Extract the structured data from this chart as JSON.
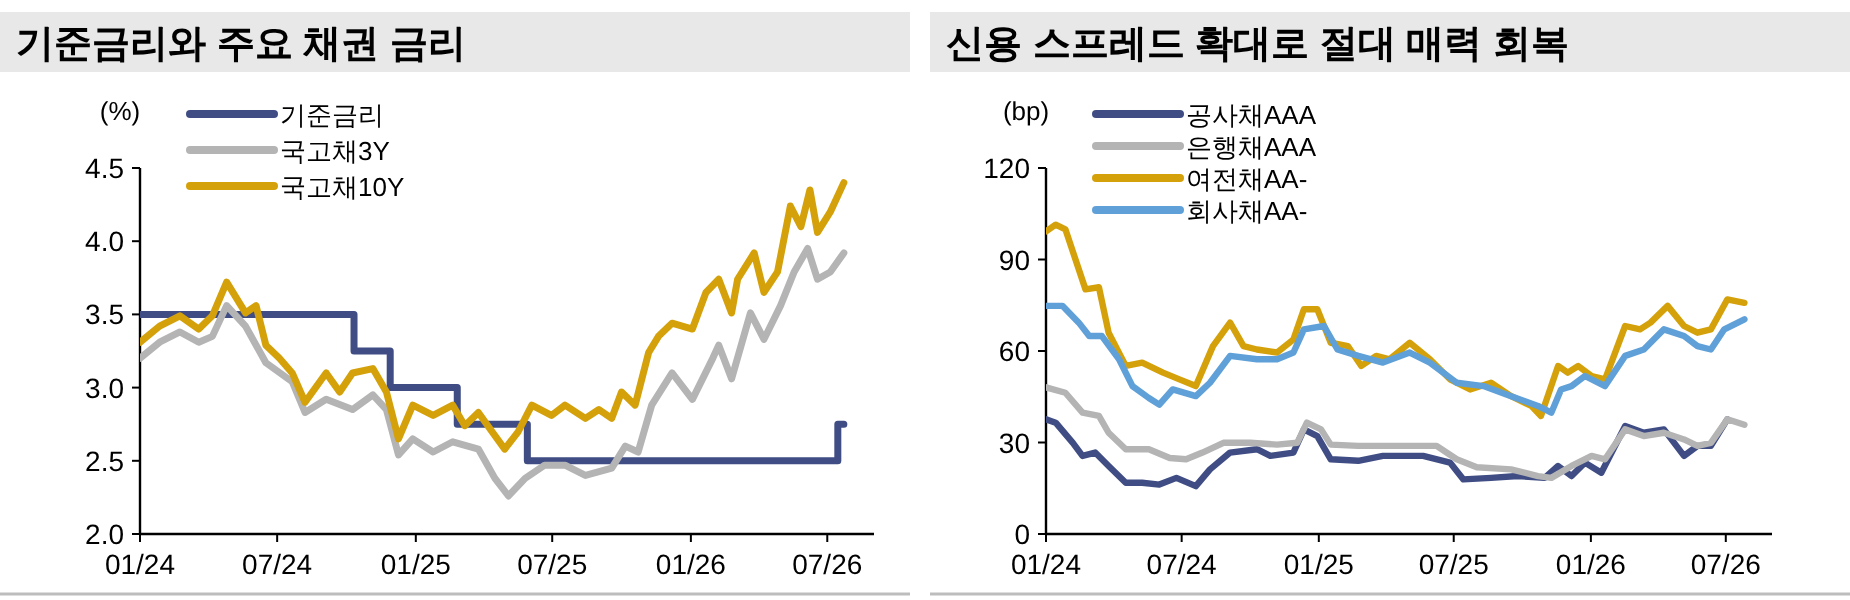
{
  "chart_data": [
    {
      "type": "line",
      "title": "기준금리와 주요 채권 금리",
      "ylabel": "(%)",
      "legend": "top left",
      "xlim": [
        "2024-01-01",
        "2026-09-01"
      ],
      "ylim": [
        2.0,
        4.5
      ],
      "xticks": [
        {
          "value": "2024-01-01",
          "label": "01/24"
        },
        {
          "value": "2024-07-01",
          "label": "07/24"
        },
        {
          "value": "2025-01-01",
          "label": "01/25"
        },
        {
          "value": "2025-07-01",
          "label": "07/25"
        },
        {
          "value": "2026-01-01",
          "label": "01/26"
        },
        {
          "value": "2026-07-01",
          "label": "07/26"
        }
      ],
      "yticks": [
        {
          "value": 2.0,
          "label": "2.0"
        },
        2.5,
        {
          "value": 3.0,
          "label": "3.0"
        },
        3.5,
        {
          "value": 4.0,
          "label": "4.0"
        },
        4.5
      ],
      "series": [
        {
          "name": "기준금리",
          "type": "step",
          "color": "#3f4d84",
          "x": [
            "2024-01-01",
            "2024-10-11",
            "2024-11-28",
            "2025-02-25",
            "2025-05-29",
            "2026-07-15",
            "2026-07-23"
          ],
          "values": [
            3.5,
            3.25,
            3.0,
            2.75,
            2.5,
            2.75,
            2.75
          ]
        },
        {
          "name": "국고채3Y",
          "color": "#b4b4b4",
          "x": [
            "2024-01-01",
            "2024-01-27",
            "2024-02-23",
            "2024-03-19",
            "2024-04-06",
            "2024-04-25",
            "2024-05-20",
            "2024-06-16",
            "2024-07-21",
            "2024-08-07",
            "2024-09-04",
            "2024-10-09",
            "2024-11-05",
            "2024-11-23",
            "2024-12-09",
            "2024-12-28",
            "2025-01-24",
            "2025-02-19",
            "2025-03-25",
            "2025-04-16",
            "2025-05-04",
            "2025-05-26",
            "2025-06-21",
            "2025-07-18",
            "2025-08-14",
            "2025-09-18",
            "2025-10-06",
            "2025-10-23",
            "2025-11-10",
            "2025-12-07",
            "2026-01-03",
            "2026-01-30",
            "2026-02-07",
            "2026-02-24",
            "2026-03-21",
            "2026-04-08",
            "2026-04-30",
            "2026-05-18",
            "2026-06-05",
            "2026-06-18",
            "2026-07-05",
            "2026-07-23"
          ],
          "values": [
            3.2,
            3.31,
            3.38,
            3.31,
            3.35,
            3.56,
            3.42,
            3.17,
            3.04,
            2.83,
            2.92,
            2.85,
            2.95,
            2.85,
            2.54,
            2.65,
            2.56,
            2.63,
            2.58,
            2.38,
            2.26,
            2.38,
            2.47,
            2.47,
            2.4,
            2.45,
            2.6,
            2.56,
            2.88,
            3.1,
            2.92,
            3.2,
            3.29,
            3.06,
            3.51,
            3.33,
            3.56,
            3.79,
            3.95,
            3.74,
            3.79,
            3.92
          ]
        },
        {
          "name": "국고채10Y",
          "color": "#d4a10a",
          "x": [
            "2024-01-01",
            "2024-01-27",
            "2024-02-23",
            "2024-03-19",
            "2024-04-06",
            "2024-04-25",
            "2024-05-20",
            "2024-06-03",
            "2024-06-16",
            "2024-07-04",
            "2024-07-21",
            "2024-08-07",
            "2024-09-04",
            "2024-09-22",
            "2024-10-09",
            "2024-11-05",
            "2024-11-23",
            "2024-12-09",
            "2024-12-28",
            "2025-01-24",
            "2025-02-19",
            "2025-03-07",
            "2025-03-25",
            "2025-04-12",
            "2025-04-29",
            "2025-05-17",
            "2025-06-04",
            "2025-06-30",
            "2025-07-18",
            "2025-08-14",
            "2025-09-01",
            "2025-09-18",
            "2025-10-01",
            "2025-10-19",
            "2025-11-06",
            "2025-11-19",
            "2025-12-07",
            "2026-01-03",
            "2026-01-21",
            "2026-02-07",
            "2026-02-24",
            "2026-03-04",
            "2026-03-26",
            "2026-04-08",
            "2026-04-26",
            "2026-05-13",
            "2026-05-27",
            "2026-06-08",
            "2026-06-18",
            "2026-07-05",
            "2026-07-23"
          ],
          "values": [
            3.31,
            3.42,
            3.49,
            3.4,
            3.49,
            3.72,
            3.51,
            3.56,
            3.29,
            3.2,
            3.1,
            2.9,
            3.1,
            2.97,
            3.1,
            3.13,
            2.97,
            2.65,
            2.88,
            2.81,
            2.88,
            2.74,
            2.83,
            2.7,
            2.58,
            2.7,
            2.88,
            2.81,
            2.88,
            2.79,
            2.85,
            2.79,
            2.97,
            2.88,
            3.24,
            3.35,
            3.44,
            3.4,
            3.65,
            3.74,
            3.51,
            3.74,
            3.92,
            3.65,
            3.79,
            4.24,
            4.1,
            4.35,
            4.06,
            4.2,
            4.4
          ]
        }
      ]
    },
    {
      "type": "line",
      "title": "신용 스프레드 확대로 절대 매력 회복",
      "ylabel": "(bp)",
      "legend": "top left",
      "xlim": [
        "2024-01-01",
        "2026-09-01"
      ],
      "ylim": [
        0,
        120
      ],
      "xticks": [
        {
          "value": "2024-01-01",
          "label": "01/24"
        },
        {
          "value": "2024-07-01",
          "label": "07/24"
        },
        {
          "value": "2025-01-01",
          "label": "01/25"
        },
        {
          "value": "2025-07-01",
          "label": "07/25"
        },
        {
          "value": "2026-01-01",
          "label": "01/26"
        },
        {
          "value": "2026-07-01",
          "label": "07/26"
        }
      ],
      "yticks": [
        0,
        30,
        60,
        90,
        120
      ],
      "series": [
        {
          "name": "공사채AAA",
          "color": "#3f4d84",
          "x": [
            "2024-01-01",
            "2024-01-14",
            "2024-02-06",
            "2024-02-19",
            "2024-03-07",
            "2024-03-25",
            "2024-04-17",
            "2024-05-09",
            "2024-06-01",
            "2024-06-24",
            "2024-07-20",
            "2024-08-08",
            "2024-09-04",
            "2024-10-10",
            "2024-10-28",
            "2024-11-28",
            "2024-12-12",
            "2024-12-30",
            "2025-01-17",
            "2025-02-23",
            "2025-03-28",
            "2025-05-21",
            "2025-06-26",
            "2025-07-14",
            "2025-08-20",
            "2025-09-25",
            "2025-10-31",
            "2025-11-18",
            "2025-12-06",
            "2025-12-24",
            "2026-01-15",
            "2026-02-16",
            "2026-03-13",
            "2026-04-09",
            "2026-05-06",
            "2026-05-24",
            "2026-06-11",
            "2026-07-03"
          ],
          "values": [
            37.6,
            36.5,
            29.9,
            25.6,
            26.7,
            22.3,
            16.8,
            16.8,
            16.2,
            18.4,
            15.7,
            21.2,
            26.7,
            27.8,
            25.6,
            26.7,
            34.3,
            32.1,
            24.5,
            24.0,
            25.6,
            25.6,
            23.4,
            17.9,
            18.4,
            19.0,
            18.4,
            22.3,
            19.0,
            23.4,
            20.1,
            35.4,
            33.2,
            34.3,
            25.6,
            28.9,
            28.9,
            37.6
          ]
        },
        {
          "name": "은행채AAA",
          "color": "#b4b4b4",
          "x": [
            "2024-01-01",
            "2024-01-27",
            "2024-02-19",
            "2024-03-12",
            "2024-03-25",
            "2024-04-17",
            "2024-05-18",
            "2024-06-15",
            "2024-07-07",
            "2024-07-29",
            "2024-08-26",
            "2024-10-01",
            "2024-11-06",
            "2024-12-03",
            "2024-12-16",
            "2025-01-04",
            "2025-01-17",
            "2025-02-23",
            "2025-04-16",
            "2025-06-08",
            "2025-07-05",
            "2025-08-01",
            "2025-09-16",
            "2025-10-22",
            "2025-11-09",
            "2025-12-06",
            "2026-01-02",
            "2026-01-20",
            "2026-02-16",
            "2026-03-13",
            "2026-04-09",
            "2026-05-06",
            "2026-05-24",
            "2026-06-11",
            "2026-07-03",
            "2026-07-26"
          ],
          "values": [
            48.1,
            46.3,
            39.8,
            38.7,
            33.2,
            27.8,
            27.8,
            24.9,
            24.5,
            26.7,
            29.9,
            29.9,
            29.3,
            29.9,
            36.5,
            34.3,
            29.3,
            28.9,
            28.9,
            28.9,
            24.5,
            21.9,
            21.2,
            19.0,
            18.4,
            22.3,
            25.6,
            24.5,
            34.3,
            32.1,
            33.2,
            31.0,
            28.9,
            29.9,
            37.6,
            35.8
          ]
        },
        {
          "name": "여전채AA-",
          "color": "#d4a10a",
          "x": [
            "2024-01-01",
            "2024-01-14",
            "2024-01-27",
            "2024-02-23",
            "2024-03-12",
            "2024-03-25",
            "2024-04-17",
            "2024-05-09",
            "2024-06-06",
            "2024-06-28",
            "2024-07-20",
            "2024-08-12",
            "2024-09-04",
            "2024-09-22",
            "2024-10-10",
            "2024-11-06",
            "2024-11-28",
            "2024-12-12",
            "2024-12-30",
            "2025-01-17",
            "2025-02-09",
            "2025-02-27",
            "2025-03-19",
            "2025-04-06",
            "2025-05-03",
            "2025-05-30",
            "2025-06-26",
            "2025-07-23",
            "2025-08-20",
            "2025-09-16",
            "2025-10-13",
            "2025-10-26",
            "2025-11-18",
            "2025-12-01",
            "2025-12-15",
            "2026-01-02",
            "2026-01-20",
            "2026-02-16",
            "2026-03-08",
            "2026-03-22",
            "2026-04-14",
            "2026-05-06",
            "2026-05-24",
            "2026-06-11",
            "2026-07-03",
            "2026-07-26"
          ],
          "values": [
            99.2,
            101.4,
            99.9,
            80.2,
            80.9,
            66.0,
            55.1,
            56.2,
            52.9,
            50.7,
            48.5,
            61.6,
            69.3,
            61.6,
            60.5,
            59.5,
            63.8,
            73.7,
            73.7,
            62.7,
            61.6,
            55.1,
            58.4,
            57.3,
            62.7,
            57.3,
            50.7,
            47.4,
            49.6,
            45.2,
            42.0,
            38.7,
            55.1,
            52.9,
            55.1,
            51.8,
            50.7,
            68.2,
            67.1,
            69.3,
            74.8,
            68.2,
            66.0,
            67.1,
            76.9,
            75.8
          ]
        },
        {
          "name": "회사채AA-",
          "color": "#5fa0d8",
          "x": [
            "2024-01-01",
            "2024-01-23",
            "2024-02-14",
            "2024-02-28",
            "2024-03-16",
            "2024-04-08",
            "2024-04-26",
            "2024-05-18",
            "2024-06-01",
            "2024-06-19",
            "2024-07-20",
            "2024-08-08",
            "2024-09-04",
            "2024-10-10",
            "2024-11-06",
            "2024-11-28",
            "2024-12-12",
            "2025-01-08",
            "2025-01-26",
            "2025-02-23",
            "2025-03-28",
            "2025-05-03",
            "2025-05-30",
            "2025-07-05",
            "2025-08-10",
            "2025-09-16",
            "2025-10-22",
            "2025-11-09",
            "2025-11-22",
            "2025-12-06",
            "2025-12-24",
            "2026-01-20",
            "2026-02-16",
            "2026-03-13",
            "2026-04-09",
            "2026-05-06",
            "2026-05-24",
            "2026-06-11",
            "2026-06-29",
            "2026-07-26"
          ],
          "values": [
            74.8,
            74.8,
            69.3,
            64.9,
            64.9,
            57.3,
            48.5,
            44.6,
            42.4,
            47.4,
            45.2,
            49.6,
            58.4,
            57.3,
            57.3,
            59.5,
            67.1,
            68.2,
            60.5,
            58.4,
            56.2,
            59.5,
            56.2,
            49.6,
            48.5,
            45.2,
            42.0,
            39.8,
            47.4,
            48.5,
            51.8,
            48.5,
            58.4,
            60.5,
            67.1,
            64.9,
            61.6,
            60.5,
            67.1,
            70.4
          ]
        }
      ]
    }
  ]
}
